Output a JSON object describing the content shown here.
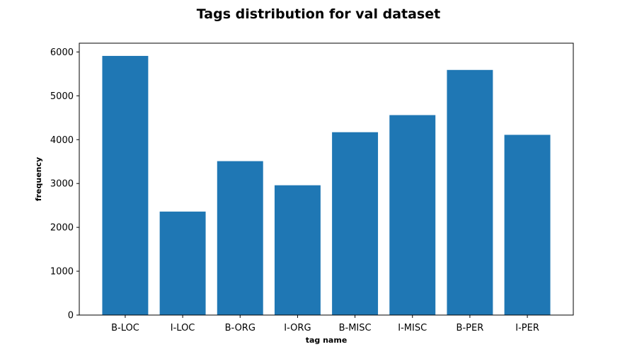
{
  "chart_data": {
    "type": "bar",
    "title": "Tags distribution for val dataset",
    "xlabel": "tag name",
    "ylabel": "frequency",
    "categories": [
      "B-LOC",
      "I-LOC",
      "B-ORG",
      "I-ORG",
      "B-MISC",
      "I-MISC",
      "B-PER",
      "I-PER"
    ],
    "values": [
      5910,
      2360,
      3510,
      2960,
      4170,
      4560,
      5590,
      4110
    ],
    "ylim": [
      0,
      6200
    ],
    "yticks": [
      0,
      1000,
      2000,
      3000,
      4000,
      5000,
      6000
    ],
    "bar_color": "#1f77b4",
    "grid": false,
    "legend": "none"
  }
}
